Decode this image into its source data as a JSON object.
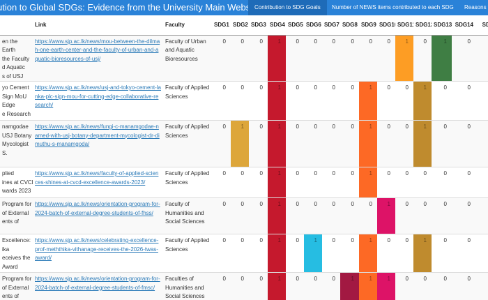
{
  "navbar": {
    "title": "ution to Global SDGs: Evidence from the University Main Website News Items",
    "tabs": [
      {
        "label": "Contribution to SDG Goals",
        "active": true
      },
      {
        "label": "Number of NEWS items contributed to each SDG",
        "active": false
      },
      {
        "label": "Reasons fo",
        "active": false
      }
    ]
  },
  "table": {
    "columns": [
      "",
      "Link",
      "Faculty",
      "SDG1",
      "SDG2",
      "SDG3",
      "SDG4",
      "SDG5",
      "SDG6",
      "SDG7",
      "SDG8",
      "SDG9",
      "SDG10",
      "SDG11",
      "SDG12",
      "SDG13",
      "SDG14",
      "SDG"
    ],
    "colors": {
      "SDG2": "#dda63a",
      "SDG4": "#c5192d",
      "SDG6": "#26bde2",
      "SDG8": "#a21942",
      "SDG9": "#fd6925",
      "SDG10": "#dd1367",
      "SDG11": "#fd9d24",
      "SDG12": "#bf8b2e",
      "SDG13": "#3f7e44"
    },
    "rows": [
      {
        "title": [
          "en the",
          "Earth",
          "the Faculty",
          "d Aquatic",
          "s of USJ"
        ],
        "link": "https://www.sjp.ac.lk/news/mou-between-the-dilmah-one-earth-center-and-the-faculty-of-urban-and-aquatic-bioresources-of-usj/",
        "faculty": "Faculty of Urban and Aquatic Bioresources",
        "values": [
          0,
          0,
          0,
          1,
          0,
          0,
          0,
          0,
          0,
          0,
          1,
          0,
          1,
          0
        ]
      },
      {
        "title": [
          "yo Cement",
          "Sign MoU",
          "Edge",
          "e Research"
        ],
        "link": "https://www.sjp.ac.lk/news/usj-and-tokyo-cement-lanka-plc-sign-mou-for-cutting-edge-collaborative-research/",
        "faculty": "Faculty of Applied Sciences",
        "values": [
          0,
          0,
          0,
          1,
          0,
          0,
          0,
          0,
          1,
          0,
          0,
          1,
          0,
          0
        ]
      },
      {
        "title": [
          "namgodae",
          "USJ Botany",
          "Mycologist",
          "S."
        ],
        "link": "https://www.sjp.ac.lk/news/fungi-c-manamgodae-named-with-usj-botany-department-mycologist-dr-dimuthu-s-manamgoda/",
        "faculty": "Faculty of Applied Sciences",
        "values": [
          0,
          1,
          0,
          1,
          0,
          0,
          0,
          0,
          1,
          0,
          0,
          1,
          0,
          0
        ]
      },
      {
        "title": [
          "plied",
          "ines at CVCD",
          "wards 2023"
        ],
        "link": "https://www.sjp.ac.lk/news/faculty-of-applied-sciences-shines-at-cvcd-excellence-awards-2023/",
        "faculty": "Faculty of Applied Sciences",
        "values": [
          0,
          0,
          0,
          1,
          0,
          0,
          0,
          0,
          1,
          0,
          0,
          0,
          0,
          0
        ]
      },
      {
        "title": [
          "Program for",
          "of External",
          "ents of"
        ],
        "link": "https://www.sjp.ac.lk/news/orientation-program-for-2024-batch-of-external-degree-students-of-fhss/",
        "faculty": " Faculty of Humanities and Social Sciences",
        "values": [
          0,
          0,
          0,
          1,
          0,
          0,
          0,
          0,
          0,
          1,
          0,
          0,
          0,
          0
        ]
      },
      {
        "title": [
          "Excellence:",
          "ika",
          "eceives the",
          "Award"
        ],
        "link": "https://www.sjp.ac.lk/news/celebrating-excellence-prof-meththika-vithanage-receives-the-2026-twas-award/",
        "faculty": "Faculty of Applied Sciences",
        "values": [
          0,
          0,
          0,
          1,
          0,
          1,
          0,
          0,
          1,
          0,
          0,
          1,
          0,
          0
        ]
      },
      {
        "title": [
          "Program for",
          "of External",
          "ents of"
        ],
        "link": "https://www.sjp.ac.lk/news/orientation-program-for-2024-batch-of-external-degree-students-of-fmsc/",
        "faculty": "Faculties of Humanities and Social Sciences",
        "values": [
          0,
          0,
          0,
          1,
          0,
          0,
          0,
          1,
          1,
          1,
          0,
          0,
          0,
          0
        ]
      }
    ]
  }
}
